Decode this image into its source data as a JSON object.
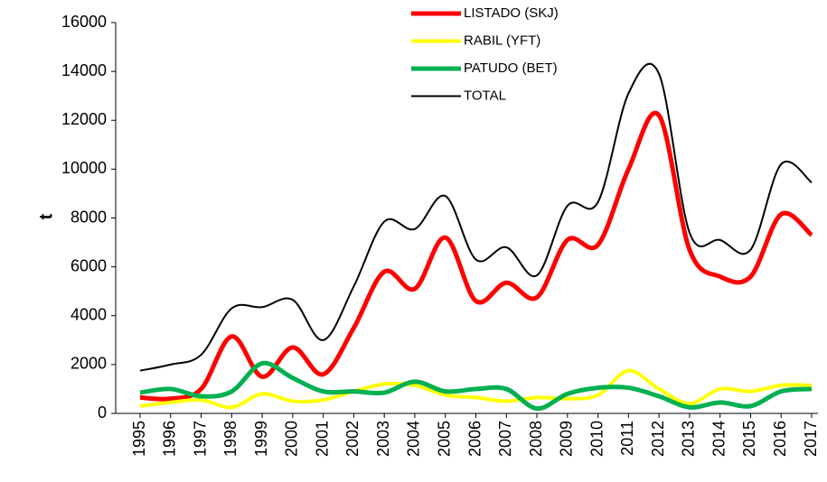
{
  "chart_data": {
    "type": "line",
    "y_label": "t",
    "categories": [
      "1995",
      "1996",
      "1997",
      "1998",
      "1999",
      "2000",
      "2001",
      "2002",
      "2003",
      "2004",
      "2005",
      "2006",
      "2007",
      "2008",
      "2009",
      "2010",
      "2011",
      "2012",
      "2013",
      "2014",
      "2015",
      "2016",
      "2017"
    ],
    "series": [
      {
        "name": "LISTADO (SKJ)",
        "color": "#ff0000",
        "width": 5,
        "values": [
          650,
          600,
          1000,
          3150,
          1500,
          2700,
          1600,
          3500,
          5800,
          5100,
          7200,
          4600,
          5350,
          4750,
          7100,
          6900,
          10000,
          12200,
          6700,
          5600,
          5600,
          8150,
          7300
        ]
      },
      {
        "name": "RABIL (YFT)",
        "color": "#ffff00",
        "width": 4,
        "values": [
          300,
          450,
          550,
          250,
          800,
          500,
          550,
          900,
          1200,
          1150,
          750,
          650,
          500,
          650,
          600,
          750,
          1750,
          1000,
          400,
          1000,
          900,
          1150,
          1150
        ]
      },
      {
        "name": "PATUDO (BET)",
        "color": "#00b050",
        "width": 5,
        "values": [
          850,
          1000,
          700,
          900,
          2050,
          1450,
          900,
          900,
          850,
          1300,
          900,
          1000,
          1000,
          200,
          800,
          1050,
          1050,
          700,
          250,
          450,
          300,
          900,
          1000
        ]
      },
      {
        "name": "TOTAL",
        "color": "#000000",
        "width": 2,
        "values": [
          1750,
          2000,
          2400,
          4300,
          4350,
          4650,
          3000,
          5200,
          7850,
          7550,
          8900,
          6300,
          6800,
          5650,
          8500,
          8650,
          13100,
          13900,
          7400,
          7100,
          6700,
          10200,
          9450
        ]
      }
    ],
    "ylim": [
      0,
      16000
    ],
    "yticks": [
      0,
      2000,
      4000,
      6000,
      8000,
      10000,
      12000,
      14000,
      16000
    ],
    "grid": false,
    "legend": "top"
  }
}
